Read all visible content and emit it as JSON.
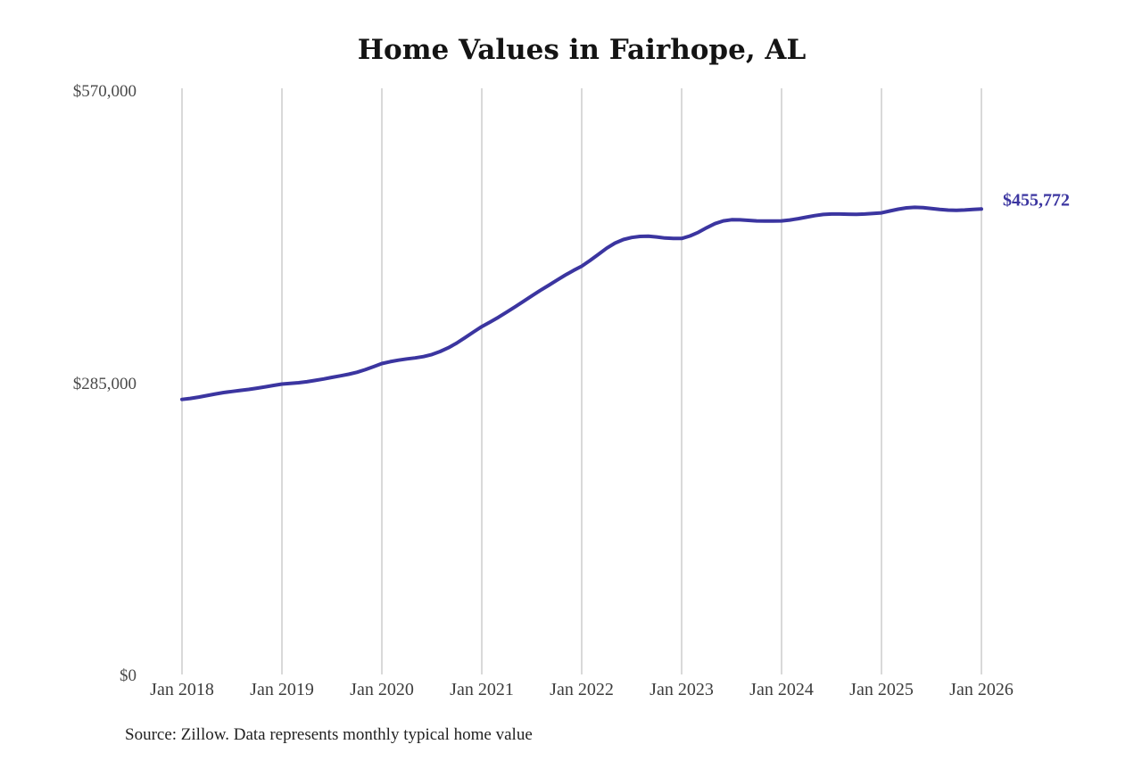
{
  "chart_data": {
    "type": "line",
    "title": "Home Values in Fairhope, AL",
    "frequency": "monthly",
    "x_start": "Jan 2018",
    "x_end": "Jan 2026",
    "x_ticks": [
      "Jan 2018",
      "Jan 2019",
      "Jan 2020",
      "Jan 2021",
      "Jan 2022",
      "Jan 2023",
      "Jan 2024",
      "Jan 2025",
      "Jan 2026"
    ],
    "y_ticks": [
      {
        "label": "$0",
        "value": 0
      },
      {
        "label": "$285,000",
        "value": 285000
      },
      {
        "label": "$570,000",
        "value": 570000
      }
    ],
    "ylim": [
      0,
      570000
    ],
    "grid": "vertical-only",
    "grid_color": "#c9c9c9",
    "legend": "none",
    "end_label": "$455,772",
    "end_value": 455772,
    "series": [
      {
        "name": "home_value",
        "color": "#3b35a0",
        "values": [
          270000,
          271000,
          272300,
          273800,
          275300,
          276700,
          277800,
          278800,
          279800,
          281000,
          282300,
          283700,
          285000,
          285600,
          286300,
          287300,
          288600,
          290000,
          291500,
          293000,
          294600,
          296500,
          299000,
          302000,
          305000,
          306800,
          308300,
          309500,
          310500,
          311800,
          313800,
          316800,
          320500,
          325000,
          330300,
          335800,
          341000,
          345500,
          350200,
          355200,
          360400,
          365700,
          371000,
          376200,
          381200,
          386200,
          391200,
          395800,
          400000,
          405500,
          411500,
          417500,
          422500,
          426000,
          428000,
          429000,
          429200,
          428500,
          427500,
          427000,
          427000,
          429500,
          433000,
          437500,
          441500,
          444200,
          445300,
          445200,
          444700,
          444200,
          444000,
          444000,
          444200,
          445000,
          446300,
          447800,
          449300,
          450400,
          450900,
          450900,
          450700,
          450600,
          450900,
          451400,
          452000,
          453800,
          455600,
          456900,
          457400,
          457100,
          456300,
          455400,
          454700,
          454500,
          454800,
          455300,
          455772
        ]
      }
    ]
  },
  "footer": {
    "source": "Source: Zillow. Data represents monthly typical home value"
  }
}
